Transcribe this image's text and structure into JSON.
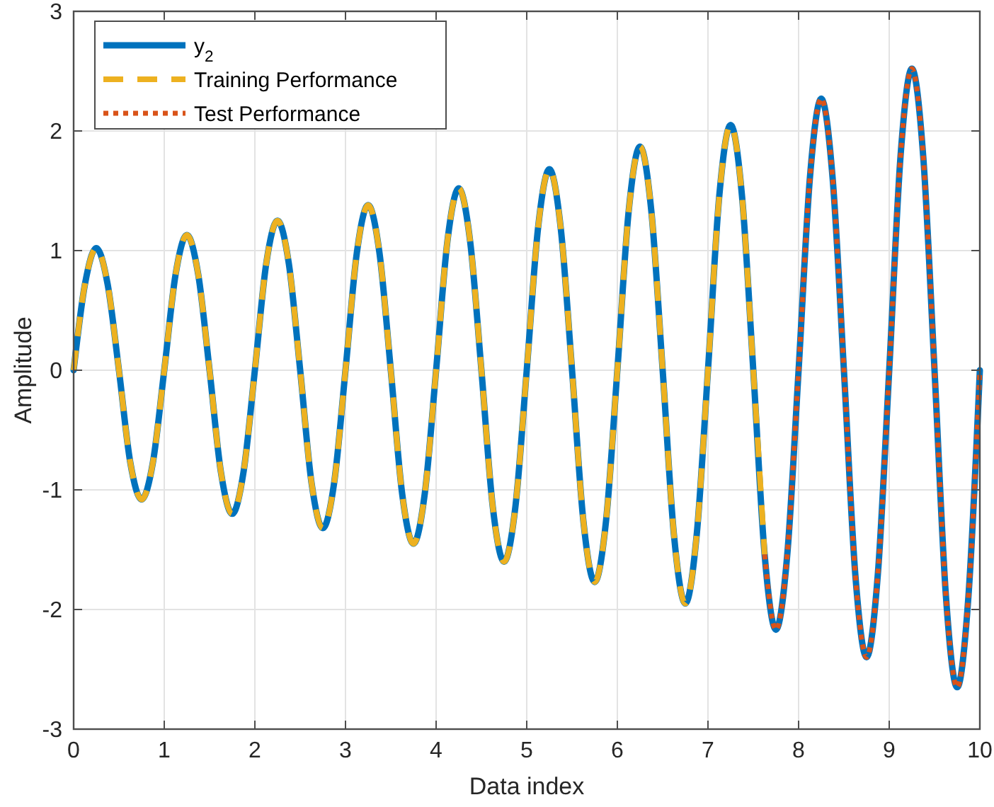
{
  "chart_data": {
    "type": "line",
    "xlabel": "Data index",
    "ylabel": "Amplitude",
    "xlim": [
      0,
      10
    ],
    "ylim": [
      -3,
      3
    ],
    "xticks": [
      0,
      1,
      2,
      3,
      4,
      5,
      6,
      7,
      8,
      9,
      10
    ],
    "yticks": [
      -3,
      -2,
      -1,
      0,
      1,
      2,
      3
    ],
    "grid": true,
    "legend": "top left",
    "x": [
      0,
      0.125,
      0.25,
      0.375,
      0.5,
      0.625,
      0.75,
      0.875,
      1,
      1.125,
      1.25,
      1.375,
      1.5,
      1.625,
      1.75,
      1.875,
      2,
      2.125,
      2.25,
      2.375,
      2.5,
      2.625,
      2.75,
      2.875,
      3,
      3.125,
      3.25,
      3.375,
      3.5,
      3.625,
      3.75,
      3.875,
      4,
      4.125,
      4.25,
      4.375,
      4.5,
      4.625,
      4.75,
      4.875,
      5,
      5.125,
      5.25,
      5.375,
      5.5,
      5.625,
      5.75,
      5.875,
      6,
      6.125,
      6.25,
      6.375,
      6.5,
      6.625,
      6.75,
      6.875,
      7,
      7.125,
      7.25,
      7.375,
      7.5,
      7.625,
      7.75,
      7.875,
      8,
      8.125,
      8.25,
      8.375,
      8.5,
      8.625,
      8.75,
      8.875,
      9,
      9.125,
      9.25,
      9.375,
      9.5,
      9.625,
      9.75,
      9.875,
      10
    ],
    "series": [
      {
        "name": "y$_{2}$",
        "color": "#0072bd",
        "line_style": "solid",
        "values": [
          0,
          0.72,
          1.02,
          0.72,
          0,
          -0.77,
          -1.08,
          -0.77,
          0,
          0.8,
          1.13,
          0.8,
          0,
          -0.85,
          -1.2,
          -0.85,
          0,
          0.89,
          1.25,
          0.89,
          0,
          -0.94,
          -1.32,
          -0.94,
          0,
          0.98,
          1.38,
          0.98,
          0,
          -1.03,
          -1.45,
          -1.03,
          0,
          1.08,
          1.52,
          1.08,
          0,
          -1.14,
          -1.6,
          -1.14,
          0,
          1.19,
          1.68,
          1.19,
          0,
          -1.26,
          -1.77,
          -1.26,
          0,
          1.33,
          1.87,
          1.33,
          0,
          -1.38,
          -1.95,
          -1.38,
          0,
          1.46,
          2.05,
          1.46,
          0,
          -1.54,
          -2.17,
          -1.54,
          0,
          1.61,
          2.27,
          1.61,
          0,
          -1.7,
          -2.4,
          -1.7,
          0,
          1.79,
          2.52,
          1.79,
          0,
          -1.88,
          -2.65,
          -1.88,
          0
        ]
      },
      {
        "name": "Training Performance",
        "color": "#edb120",
        "line_style": "dashed",
        "x": [
          0,
          0.125,
          0.25,
          0.375,
          0.5,
          0.625,
          0.75,
          0.875,
          1,
          1.125,
          1.25,
          1.375,
          1.5,
          1.625,
          1.75,
          1.875,
          2,
          2.125,
          2.25,
          2.375,
          2.5,
          2.625,
          2.75,
          2.875,
          3,
          3.125,
          3.25,
          3.375,
          3.5,
          3.625,
          3.75,
          3.875,
          4,
          4.125,
          4.25,
          4.375,
          4.5,
          4.625,
          4.75,
          4.875,
          5,
          5.125,
          5.25,
          5.375,
          5.5,
          5.625,
          5.75,
          5.875,
          6,
          6.125,
          6.25,
          6.375,
          6.5,
          6.625,
          6.75,
          6.875,
          7,
          7.125,
          7.25,
          7.375,
          7.5,
          7.625
        ],
        "values": [
          0,
          0.72,
          1.02,
          0.72,
          0,
          -0.77,
          -1.08,
          -0.77,
          0,
          0.8,
          1.13,
          0.8,
          0,
          -0.85,
          -1.2,
          -0.85,
          0,
          0.89,
          1.25,
          0.89,
          0,
          -0.94,
          -1.32,
          -0.94,
          0,
          0.98,
          1.38,
          0.98,
          0,
          -1.03,
          -1.45,
          -1.03,
          0,
          1.08,
          1.52,
          1.08,
          0,
          -1.14,
          -1.6,
          -1.14,
          0,
          1.19,
          1.68,
          1.19,
          0,
          -1.26,
          -1.77,
          -1.26,
          0,
          1.33,
          1.87,
          1.33,
          0,
          -1.38,
          -1.95,
          -1.38,
          0,
          1.46,
          2.05,
          1.46,
          0,
          -1.54
        ]
      },
      {
        "name": "Test Performance",
        "color": "#d95319",
        "line_style": "dotted",
        "x": [
          7.625,
          7.75,
          7.875,
          8,
          8.125,
          8.25,
          8.375,
          8.5,
          8.625,
          8.75,
          8.875,
          9,
          9.125,
          9.25,
          9.375,
          9.5,
          9.625,
          9.75,
          9.875,
          10
        ],
        "values": [
          -1.54,
          -2.17,
          -1.54,
          0,
          1.61,
          2.27,
          1.61,
          0,
          -1.7,
          -2.4,
          -1.7,
          0,
          1.79,
          2.52,
          1.79,
          0,
          -1.88,
          -2.65,
          -1.88,
          0
        ]
      }
    ]
  }
}
